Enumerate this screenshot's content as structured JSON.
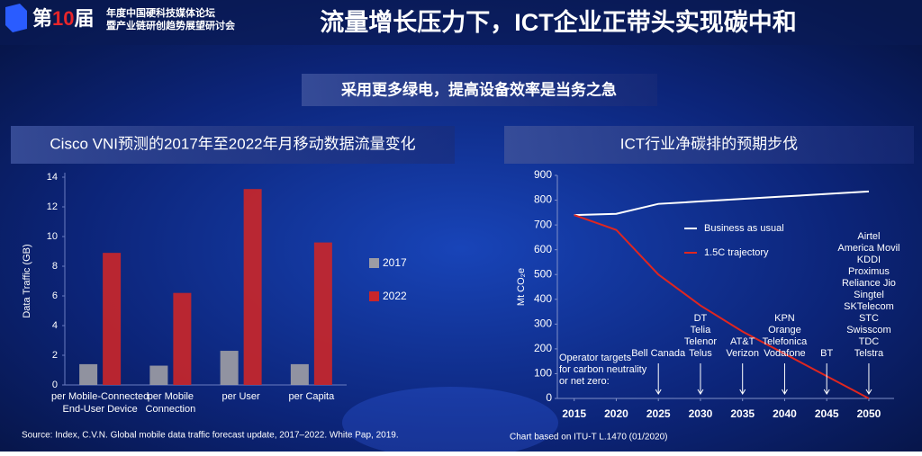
{
  "header": {
    "logo": [
      "第",
      "10",
      "届"
    ],
    "forum": [
      "年度中国硬科技媒体论坛",
      "暨产业链研创趋势展望研讨会"
    ],
    "title": "流量增长压力下，ICT企业正带头实现碳中和",
    "subtitle": "采用更多绿电，提高设备效率是当务之急"
  },
  "chart_data": [
    {
      "type": "bar",
      "title": "Cisco VNI预测的2017年至2022年月移动数据流量变化",
      "y_label": "Data Traffic (GB)",
      "categories": [
        [
          "per Mobile-Connected",
          "End-User Device"
        ],
        [
          "per Mobile",
          "Connection"
        ],
        [
          "per User"
        ],
        [
          "per Capita"
        ]
      ],
      "series": [
        {
          "name": "2017",
          "color": "#9c9ca4",
          "values": [
            1.4,
            1.3,
            2.3,
            1.4
          ]
        },
        {
          "name": "2022",
          "color": "#c8262a",
          "values": [
            8.9,
            6.2,
            13.2,
            9.6
          ]
        }
      ],
      "ylim": [
        0,
        14
      ],
      "yticks": [
        0,
        2,
        4,
        6,
        8,
        10,
        12,
        14
      ],
      "grid": false,
      "legend": "right",
      "source": "Source: Index, C.V.N. Global mobile data traffic forecast update, 2017–2022. White Pap, 2019."
    },
    {
      "type": "line",
      "title": "ICT行业净碳排的预期步伐",
      "y_label": "Mt CO₂e",
      "x": [
        2015,
        2020,
        2025,
        2030,
        2035,
        2040,
        2045,
        2050
      ],
      "series": [
        {
          "name": "Business as usual",
          "color": "#ffffff",
          "values": [
            740,
            745,
            785,
            795,
            805,
            815,
            825,
            835
          ]
        },
        {
          "name": "1.5C trajectory",
          "color": "#e0261f",
          "values": [
            740,
            680,
            500,
            375,
            270,
            180,
            90,
            0
          ]
        }
      ],
      "xlim": [
        2013,
        2053
      ],
      "xticks": [
        2015,
        2020,
        2025,
        2030,
        2035,
        2040,
        2045,
        2050
      ],
      "ylim": [
        0,
        900
      ],
      "yticks": [
        0,
        100,
        200,
        300,
        400,
        500,
        600,
        700,
        800,
        900
      ],
      "grid": false,
      "legend": "upper-center",
      "note": [
        "Operator targets",
        "for carbon neutrality",
        "or net zero:"
      ],
      "annotations": [
        {
          "x": 2025,
          "lines": [
            "Bell Canada"
          ]
        },
        {
          "x": 2030,
          "lines": [
            "DT",
            "Telia",
            "Telenor",
            "Telus"
          ]
        },
        {
          "x": 2035,
          "lines": [
            "AT&T",
            "Verizon"
          ]
        },
        {
          "x": 2040,
          "lines": [
            "KPN",
            "Orange",
            "Telefonica",
            "Vodafone"
          ]
        },
        {
          "x": 2045,
          "lines": [
            "BT"
          ]
        },
        {
          "x": 2050,
          "lines": [
            "Airtel",
            "America Movil",
            "KDDI",
            "Proximus",
            "Reliance Jio",
            "Singtel",
            "SKTelecom",
            "STC",
            "Swisscom",
            "TDC",
            "Telstra"
          ]
        }
      ],
      "source": "Chart based on ITU-T L.1470 (01/2020)"
    }
  ]
}
